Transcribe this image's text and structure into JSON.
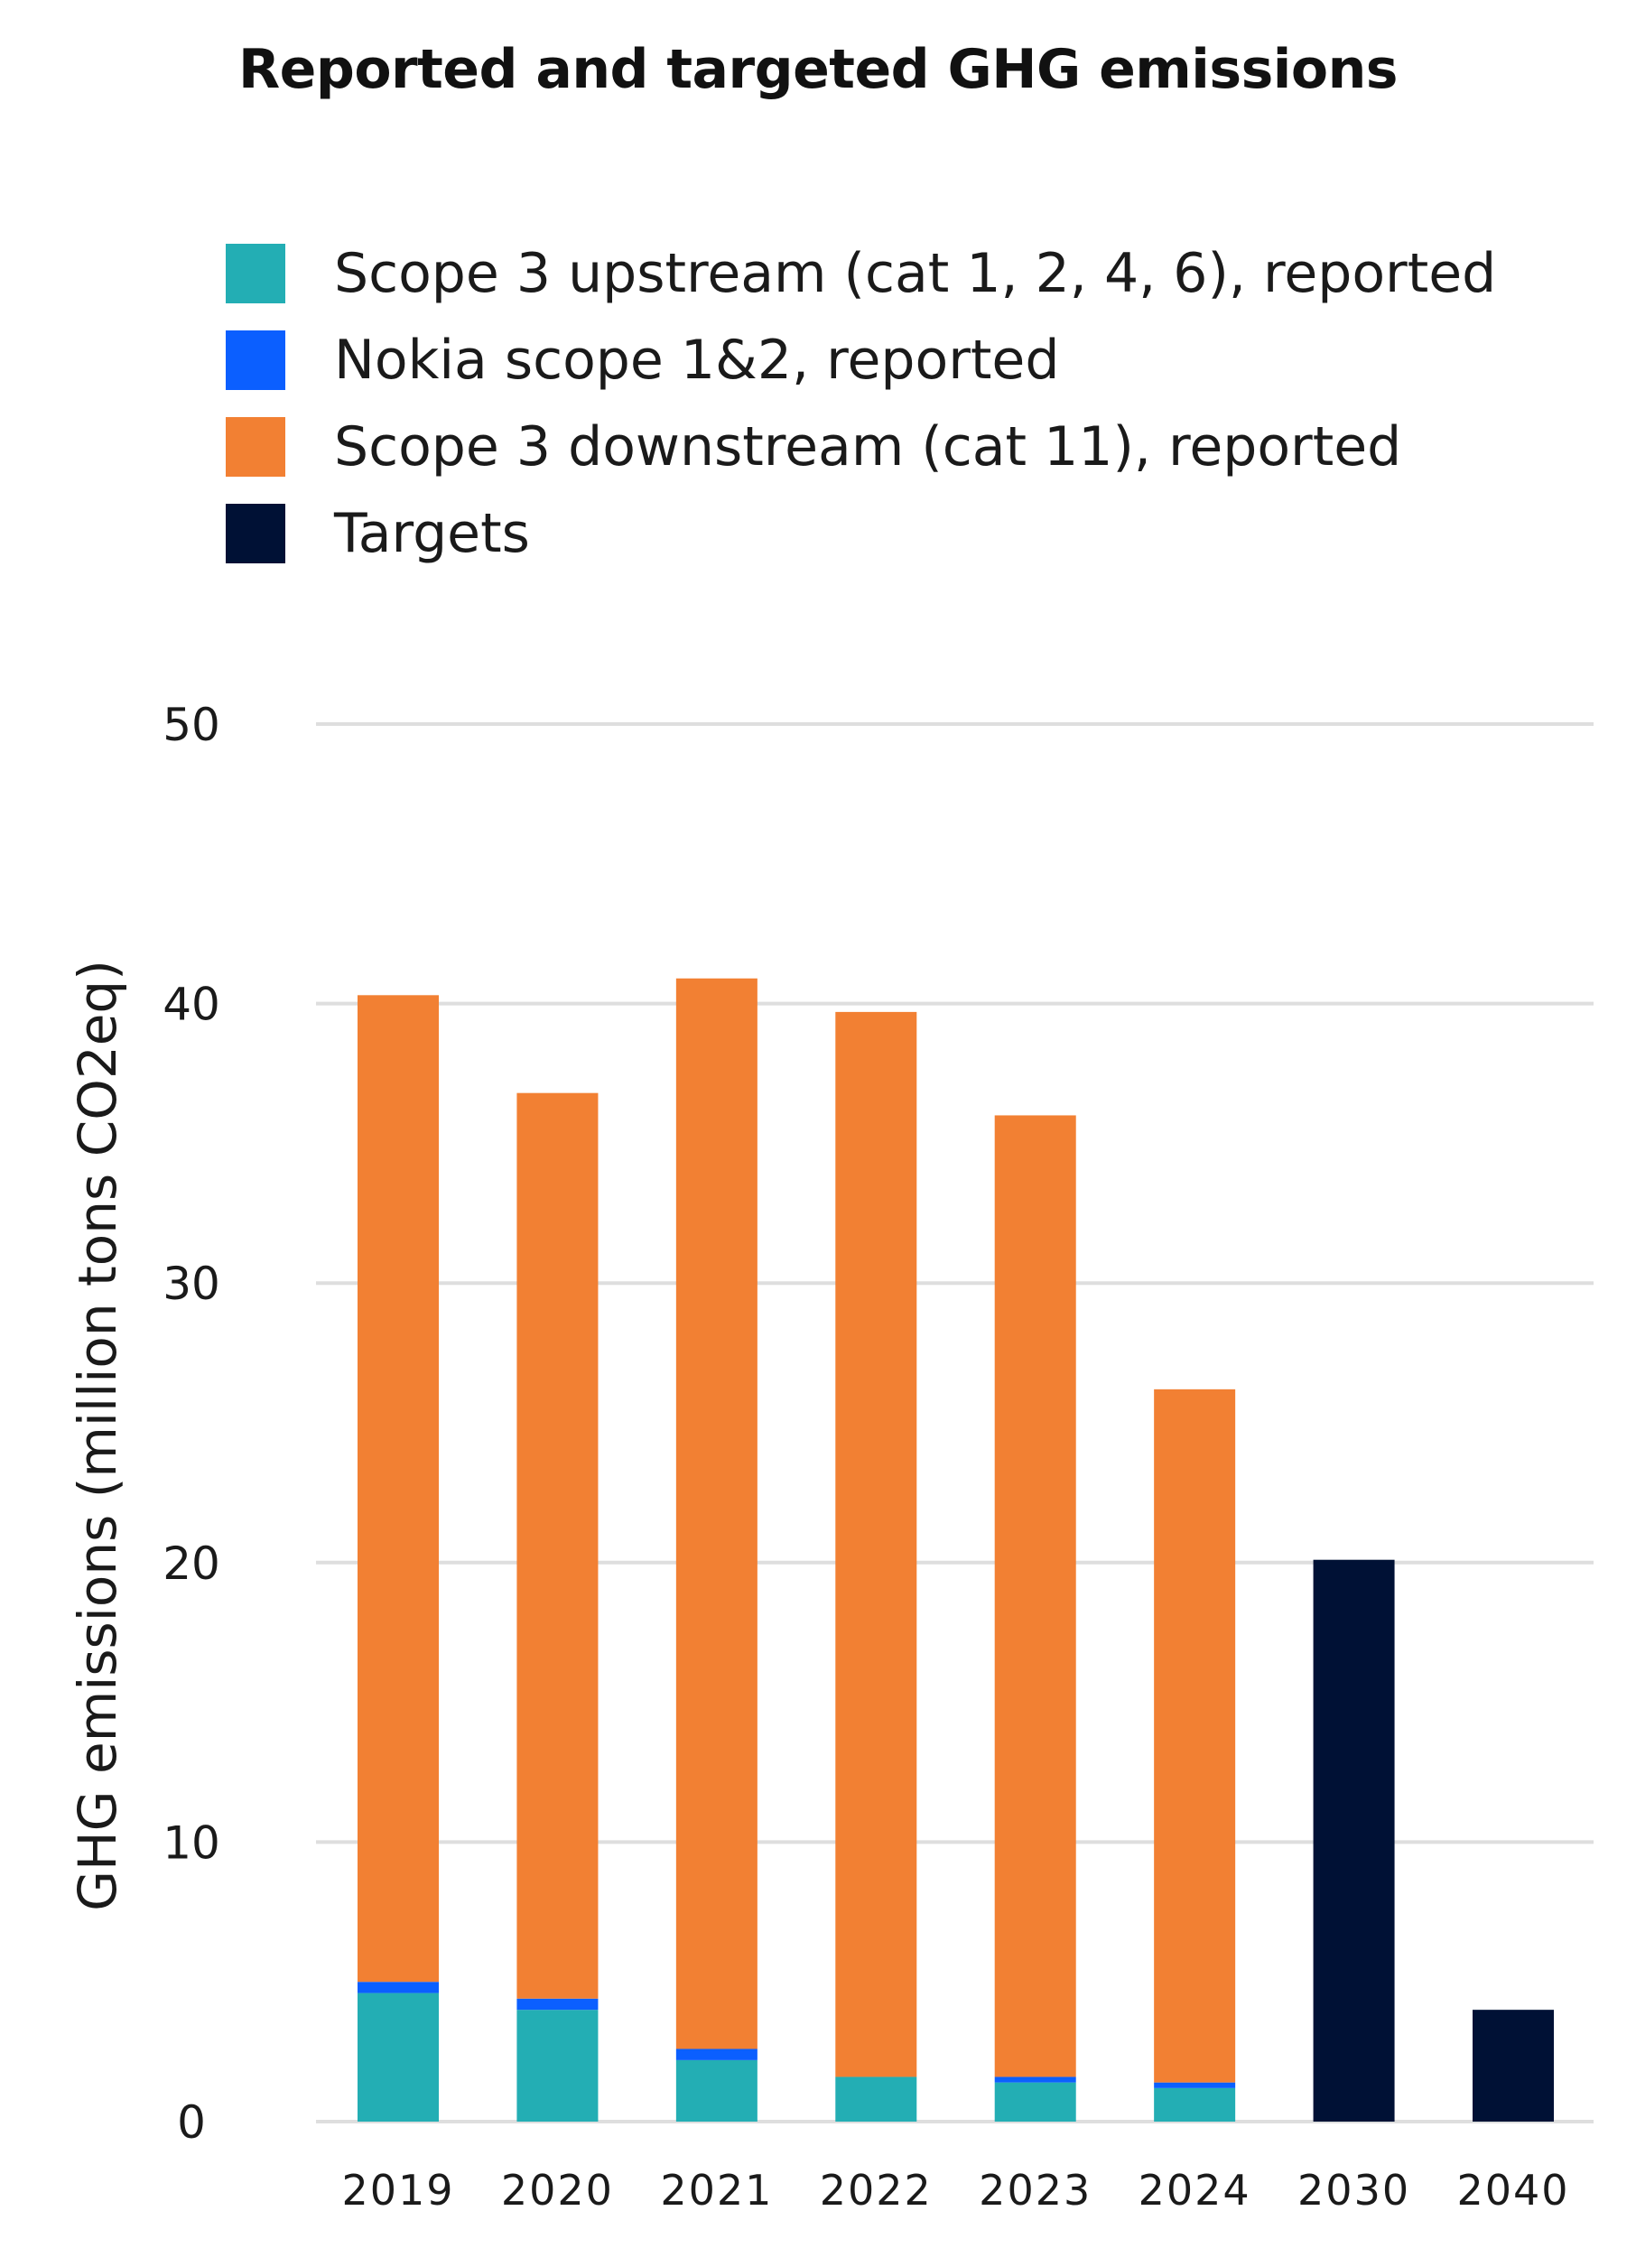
{
  "chart_data": {
    "type": "bar",
    "stacked": true,
    "title": "Reported and targeted GHG emissions",
    "ylabel": "GHG emissions (million tons CO2eq)",
    "xlabel": "",
    "ylim": [
      0,
      50
    ],
    "yticks": [
      0,
      10,
      20,
      30,
      40,
      50
    ],
    "grid": true,
    "legend_position": "top-left",
    "categories": [
      "2019",
      "2020",
      "2021",
      "2022",
      "2023",
      "2024",
      "2030",
      "2040"
    ],
    "series": [
      {
        "name": "Scope 3 upstream (cat 1, 2, 4, 6), reported",
        "color": "#23aeb4",
        "values": [
          4.6,
          4.0,
          2.2,
          1.6,
          1.4,
          1.2,
          0,
          0
        ]
      },
      {
        "name": "Nokia scope 1&2, reported",
        "color": "#0b5fff",
        "values": [
          0.4,
          0.4,
          0.4,
          0.0,
          0.2,
          0.2,
          0,
          0
        ]
      },
      {
        "name": "Scope 3 downstream (cat 11), reported",
        "color": "#f28033",
        "values": [
          35.3,
          32.4,
          38.3,
          38.1,
          34.4,
          24.8,
          0,
          0
        ]
      },
      {
        "name": "Targets",
        "color": "#001135",
        "values": [
          0,
          0,
          0,
          0,
          0,
          0,
          20.1,
          4.0
        ]
      }
    ]
  }
}
